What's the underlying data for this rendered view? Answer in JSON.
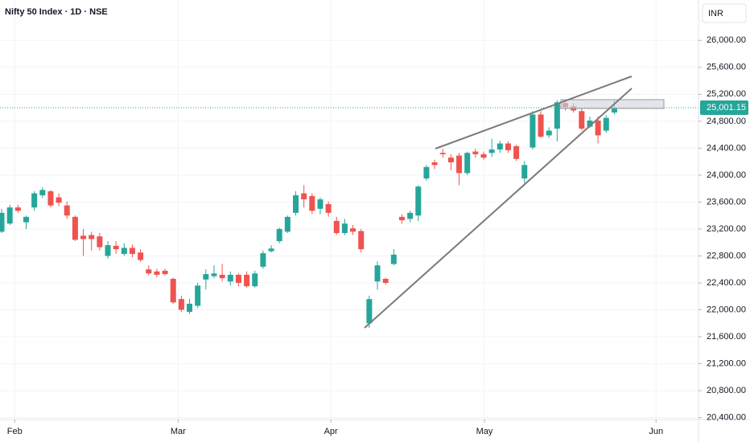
{
  "chart_data": {
    "type": "candlestick",
    "title": "Nifty 50 Index · 1D · NSE",
    "currency": "INR",
    "up_color": "#26a69a",
    "down_color": "#ef5350",
    "grid": true,
    "xlim": [
      -0.2,
      85.3
    ],
    "xticks": [
      {
        "value": 1.6,
        "label": "Feb"
      },
      {
        "value": 21.6,
        "label": "Mar"
      },
      {
        "value": 40.3,
        "label": "Apr"
      },
      {
        "value": 59.1,
        "label": "May"
      },
      {
        "value": 80.1,
        "label": "Jun"
      }
    ],
    "ylim": [
      20300,
      26600
    ],
    "yticks": [
      {
        "value": 20400,
        "label": "20,400.00"
      },
      {
        "value": 20800,
        "label": "20,800.00"
      },
      {
        "value": 21200,
        "label": "21,200.00"
      },
      {
        "value": 21600,
        "label": "21,600.00"
      },
      {
        "value": 22000,
        "label": "22,000.00"
      },
      {
        "value": 22400,
        "label": "22,400.00"
      },
      {
        "value": 22800,
        "label": "22,800.00"
      },
      {
        "value": 23200,
        "label": "23,200.00"
      },
      {
        "value": 23600,
        "label": "23,600.00"
      },
      {
        "value": 24000,
        "label": "24,000.00"
      },
      {
        "value": 24400,
        "label": "24,400.00"
      },
      {
        "value": 24800,
        "label": "24,800.00"
      },
      {
        "value": 25200,
        "label": "25,200.00"
      },
      {
        "value": 25600,
        "label": "25,600.00"
      },
      {
        "value": 26000,
        "label": "26,000.00"
      }
    ],
    "open": [
      23160,
      23280,
      23520,
      23300,
      23520,
      23700,
      23760,
      23670,
      23550,
      23380,
      23100,
      23110,
      23090,
      22800,
      22950,
      22830,
      22920,
      22850,
      22600,
      22570,
      22580,
      22460,
      22160,
      21970,
      22060,
      22450,
      22500,
      22520,
      22420,
      22520,
      22520,
      22350,
      22640,
      22870,
      23020,
      23160,
      23440,
      23730,
      23690,
      23500,
      23570,
      23320,
      23140,
      23210,
      23170,
      21800,
      22420,
      22460,
      22680,
      23380,
      23350,
      23400,
      23950,
      24190,
      24330,
      24260,
      24290,
      24030,
      24350,
      24310,
      24330,
      24380,
      24470,
      24430,
      23950,
      24410,
      24900,
      24590,
      24690,
      25070,
      25020,
      24950,
      24720,
      24810,
      24660,
      24930
    ],
    "high": [
      23500,
      23560,
      23560,
      23400,
      23760,
      23820,
      23780,
      23730,
      23610,
      23400,
      23200,
      23160,
      23140,
      23020,
      23020,
      22990,
      22970,
      22900,
      22660,
      22610,
      22610,
      22480,
      22210,
      22160,
      22400,
      22600,
      22660,
      22680,
      22570,
      22540,
      22570,
      22580,
      22880,
      22960,
      23220,
      23400,
      23760,
      23850,
      23730,
      23670,
      23610,
      23380,
      23350,
      23260,
      23200,
      22210,
      22720,
      22480,
      22900,
      23420,
      23470,
      23850,
      24150,
      24230,
      24390,
      24310,
      24330,
      24350,
      24390,
      24350,
      24540,
      24510,
      24500,
      24450,
      24210,
      24950,
      24950,
      24710,
      25110,
      25110,
      25070,
      24990,
      24870,
      24870,
      24890,
      25110
    ],
    "low": [
      23140,
      23260,
      23440,
      23200,
      23470,
      23660,
      23520,
      23540,
      23350,
      23020,
      22800,
      22880,
      22880,
      22760,
      22830,
      22800,
      22780,
      22710,
      22520,
      22480,
      22510,
      22090,
      21970,
      21940,
      22030,
      22300,
      22470,
      22420,
      22360,
      22350,
      22330,
      22330,
      22610,
      22850,
      22990,
      23140,
      23400,
      23520,
      23420,
      23420,
      23380,
      23110,
      23110,
      23110,
      22850,
      21730,
      22300,
      22370,
      22660,
      23280,
      23300,
      23320,
      23920,
      24090,
      24260,
      24070,
      23850,
      24000,
      24260,
      24230,
      24270,
      24330,
      24330,
      24210,
      23880,
      24380,
      24550,
      24550,
      24500,
      24960,
      24930,
      24660,
      24700,
      24470,
      24630,
      24900
    ],
    "close": [
      23440,
      23520,
      23470,
      23380,
      23730,
      23780,
      23550,
      23590,
      23400,
      23040,
      23050,
      23050,
      22930,
      22960,
      22900,
      22920,
      22830,
      22740,
      22540,
      22520,
      22530,
      22110,
      22000,
      22090,
      22360,
      22530,
      22540,
      22470,
      22520,
      22400,
      22350,
      22540,
      22840,
      22910,
      23200,
      23380,
      23700,
      23640,
      23470,
      23640,
      23440,
      23140,
      23280,
      23160,
      22900,
      22160,
      22660,
      22400,
      22820,
      23330,
      23440,
      23830,
      24120,
      24150,
      24310,
      24190,
      24030,
      24330,
      24310,
      24260,
      24380,
      24470,
      24370,
      24240,
      24150,
      24900,
      24570,
      24660,
      25080,
      25010,
      24960,
      24690,
      24810,
      24590,
      24850,
      25001.15
    ],
    "last_value_label": "25,001.15"
  }
}
